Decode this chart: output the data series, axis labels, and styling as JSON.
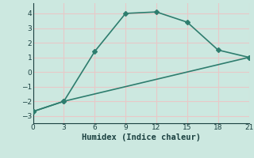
{
  "line1_x": [
    0,
    3,
    6,
    9,
    12,
    15,
    18,
    21
  ],
  "line1_y": [
    -2.7,
    -2.0,
    1.4,
    4.0,
    4.1,
    3.4,
    1.5,
    1.0
  ],
  "line2_x": [
    0,
    3,
    21
  ],
  "line2_y": [
    -2.7,
    -2.0,
    1.0
  ],
  "line_color": "#2e7d6e",
  "bg_color": "#cce8e0",
  "grid_color": "#e8c8c8",
  "xlabel": "Humidex (Indice chaleur)",
  "xlim": [
    0,
    21
  ],
  "ylim": [
    -3.5,
    4.7
  ],
  "xticks": [
    0,
    3,
    6,
    9,
    12,
    15,
    18,
    21
  ],
  "yticks": [
    -3,
    -2,
    -1,
    0,
    1,
    2,
    3,
    4
  ],
  "marker": "D",
  "markersize": 3,
  "linewidth": 1.2,
  "font_color": "#1a4040",
  "font_size_tick": 6.5,
  "font_size_label": 7.5
}
